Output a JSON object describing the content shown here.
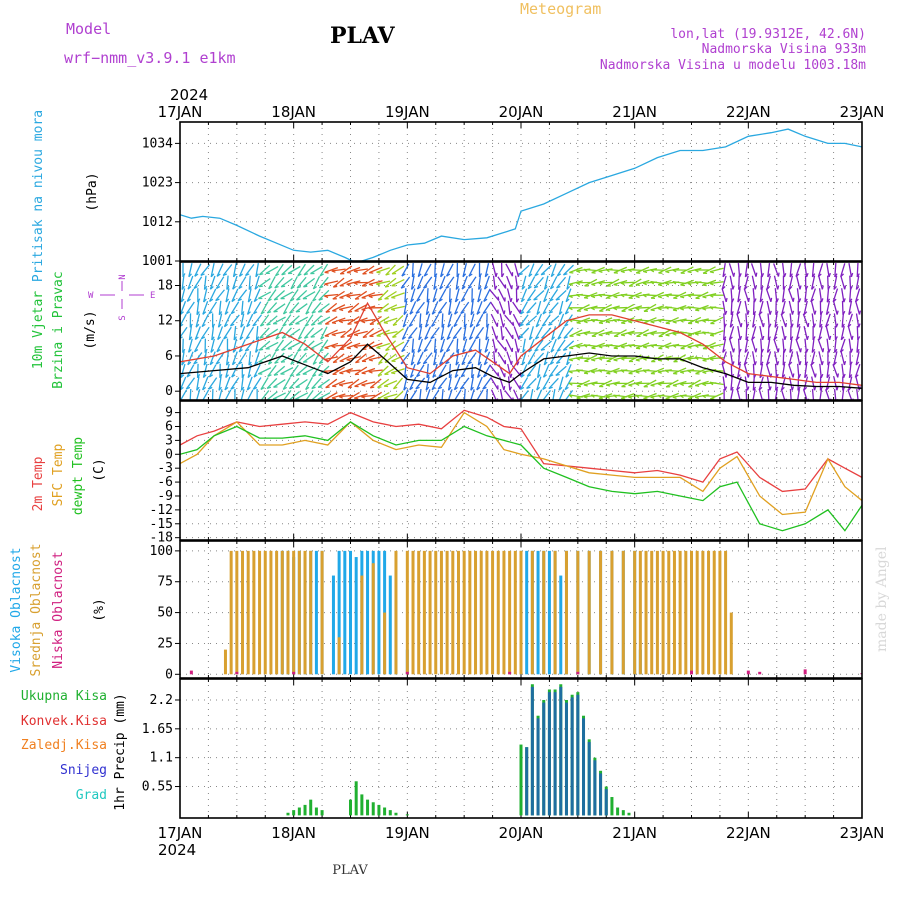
{
  "header": {
    "model_label": "Model",
    "model_name": "wrf−nmm_v3.9.1  e1km",
    "station": "PLAV",
    "meteogram": "Meteogram",
    "lonlat": "lon,lat (19.9312E, 42.6N)",
    "altitude": "Nadmorska Visina 933m",
    "model_altitude": "Nadmorska Visina u modelu 1003.18m",
    "year_top": "2024",
    "year_bottom": "2024",
    "footer_station": "PLAV",
    "credit": "made by Angel"
  },
  "colors": {
    "pressure": "#2aa8e0",
    "wind_label": "#22c33a",
    "axis_purple": "#b03cd0",
    "temp2m": "#e84040",
    "sfc": "#e0a020",
    "dewpt": "#20c020",
    "cloud_high": "#20a8e8",
    "cloud_mid": "#d8a030",
    "cloud_low": "#d02080",
    "precip_total": "#20b030",
    "precip_conv": "#e03030",
    "precip_frozen": "#f08020",
    "snow": "#3030d0",
    "grad": "#20c8c0"
  },
  "chart_data": [
    {
      "type": "line",
      "panel": "pressure",
      "ylabel_1": "Pritisak na nivou mora",
      "ylabel_2": "(hPa)",
      "x_ticks": [
        "17JAN",
        "18JAN",
        "19JAN",
        "20JAN",
        "21JAN",
        "22JAN",
        "23JAN"
      ],
      "y_ticks": [
        "1001",
        "1012",
        "1023",
        "1034"
      ],
      "ylim": [
        1001,
        1040
      ],
      "series": [
        {
          "color": "#2aa8e0",
          "x": [
            0,
            0.1,
            0.2,
            0.35,
            0.5,
            0.7,
            0.85,
            1.0,
            1.15,
            1.3,
            1.45,
            1.55,
            1.7,
            1.85,
            2.0,
            2.15,
            2.3,
            2.5,
            2.7,
            2.85,
            2.95,
            3.0,
            3.2,
            3.4,
            3.6,
            3.8,
            4.0,
            4.2,
            4.4,
            4.6,
            4.8,
            5.0,
            5.2,
            5.35,
            5.5,
            5.7,
            5.85,
            6.0
          ],
          "values": [
            1014,
            1013,
            1013.5,
            1013,
            1011,
            1008,
            1006,
            1004,
            1003.5,
            1004,
            1002,
            1000.5,
            1002,
            1004,
            1005.5,
            1006,
            1008,
            1007,
            1007.5,
            1009,
            1010,
            1015,
            1017,
            1020,
            1023,
            1025,
            1027,
            1030,
            1032,
            1032,
            1033,
            1036,
            1037,
            1038,
            1036,
            1034,
            1034,
            1033
          ]
        }
      ]
    },
    {
      "type": "line",
      "panel": "wind",
      "ylabel_1": "10m Vjetar",
      "ylabel_2": "Brzina i Pravac",
      "ylabel_3": "(m/s)",
      "y_ticks": [
        "0",
        "6",
        "12",
        "18"
      ],
      "ylim": [
        -1.5,
        22
      ],
      "legend": {
        "n": "N",
        "w": "W",
        "e": "E",
        "s": "S"
      },
      "series": [
        {
          "name": "speed",
          "color": "#000000",
          "x": [
            0,
            0.3,
            0.6,
            0.9,
            1.1,
            1.3,
            1.5,
            1.65,
            1.8,
            2.0,
            2.2,
            2.4,
            2.6,
            2.75,
            2.9,
            3.0,
            3.2,
            3.4,
            3.6,
            3.8,
            4.0,
            4.2,
            4.4,
            4.6,
            4.8,
            5.0,
            5.2,
            5.4,
            5.6,
            5.8,
            6.0
          ],
          "values": [
            3,
            3.5,
            4,
            6,
            4.5,
            3,
            5,
            8,
            5.5,
            2,
            1.5,
            3.5,
            4,
            2.5,
            1.5,
            3,
            5.5,
            6,
            6.5,
            6,
            6,
            5.5,
            5.5,
            4,
            3,
            1.5,
            1.5,
            1,
            0.8,
            0.8,
            0.5
          ]
        },
        {
          "name": "gust",
          "color": "#e04030",
          "x": [
            0,
            0.3,
            0.6,
            0.9,
            1.1,
            1.3,
            1.5,
            1.65,
            1.8,
            2.0,
            2.2,
            2.4,
            2.6,
            2.75,
            2.9,
            3.0,
            3.2,
            3.4,
            3.6,
            3.8,
            4.0,
            4.2,
            4.4,
            4.6,
            4.8,
            5.0,
            5.2,
            5.4,
            5.6,
            5.8,
            6.0
          ],
          "values": [
            5,
            6,
            8,
            10,
            8,
            5,
            9,
            15,
            10,
            4,
            3,
            6,
            7,
            5,
            3,
            6,
            9,
            12,
            13,
            13,
            12,
            11,
            10,
            8,
            5,
            3,
            2.5,
            2,
            1.5,
            1.5,
            1
          ]
        }
      ]
    },
    {
      "type": "line",
      "panel": "temperature",
      "ylabel_1": "2m Temp",
      "ylabel_2": "SFC Temp",
      "ylabel_3": "dewpt Temp",
      "ylabel_4": "(C)",
      "y_ticks": [
        "-18",
        "-15",
        "-12",
        "-9",
        "-6",
        "-3",
        "0",
        "3",
        "6",
        "9"
      ],
      "ylim": [
        -18.5,
        11.5
      ],
      "series": [
        {
          "name": "2m Temp",
          "color": "#e84040",
          "x": [
            0,
            0.15,
            0.3,
            0.5,
            0.7,
            0.9,
            1.1,
            1.3,
            1.5,
            1.7,
            1.9,
            2.1,
            2.3,
            2.5,
            2.7,
            2.85,
            3.0,
            3.2,
            3.4,
            3.6,
            3.8,
            4.0,
            4.2,
            4.4,
            4.6,
            4.75,
            4.9,
            5.1,
            5.3,
            5.5,
            5.7,
            5.85,
            6.0
          ],
          "values": [
            2,
            4,
            5,
            7,
            6,
            6.5,
            7,
            6.5,
            9,
            7,
            6,
            6.5,
            5.5,
            9.5,
            8,
            6,
            5.5,
            -2,
            -2.5,
            -3,
            -3.5,
            -4,
            -3.5,
            -4.5,
            -6,
            -1,
            0.5,
            -5,
            -8,
            -7.5,
            -1,
            -3,
            -5
          ]
        },
        {
          "name": "SFC Temp",
          "color": "#e0a020",
          "x": [
            0,
            0.15,
            0.3,
            0.5,
            0.7,
            0.9,
            1.1,
            1.3,
            1.5,
            1.7,
            1.9,
            2.1,
            2.3,
            2.5,
            2.7,
            2.85,
            3.0,
            3.2,
            3.4,
            3.6,
            3.8,
            4.0,
            4.2,
            4.4,
            4.6,
            4.75,
            4.9,
            5.1,
            5.3,
            5.5,
            5.7,
            5.85,
            6.0
          ],
          "values": [
            -2,
            0,
            4,
            7,
            2,
            2,
            3,
            2,
            7,
            3,
            1,
            2,
            1.5,
            9,
            6,
            1,
            0,
            -1,
            -2.5,
            -4,
            -4.5,
            -5,
            -5,
            -5,
            -8,
            -3,
            -0.5,
            -9,
            -13,
            -12.5,
            -1,
            -7,
            -10
          ]
        },
        {
          "name": "dewpt Temp",
          "color": "#20c020",
          "x": [
            0,
            0.15,
            0.3,
            0.5,
            0.7,
            0.9,
            1.1,
            1.3,
            1.5,
            1.7,
            1.9,
            2.1,
            2.3,
            2.5,
            2.7,
            2.85,
            3.0,
            3.2,
            3.4,
            3.6,
            3.8,
            4.0,
            4.2,
            4.4,
            4.6,
            4.75,
            4.9,
            5.1,
            5.3,
            5.5,
            5.7,
            5.85,
            6.0
          ],
          "values": [
            0,
            1,
            4,
            6,
            3.5,
            3.5,
            4,
            3,
            7,
            4,
            2,
            3,
            3,
            6,
            4,
            3,
            2,
            -3,
            -5,
            -7,
            -8,
            -8.5,
            -8,
            -9,
            -10,
            -7,
            -6,
            -15,
            -16.5,
            -15,
            -12,
            -16.5,
            -11
          ]
        }
      ]
    },
    {
      "type": "bar",
      "panel": "clouds",
      "ylabel_1": "Visoka Oblacnost",
      "ylabel_2": "Srednja Oblacnost",
      "ylabel_3": "Niska Oblacnost",
      "ylabel_4": "(%)",
      "y_ticks": [
        "0",
        "25",
        "50",
        "75",
        "100"
      ],
      "ylim": [
        -3,
        108
      ],
      "series": [
        {
          "name": "Visoka Oblacnost",
          "color": "#20a8e8",
          "x": [
            0.9,
            0.95,
            1.0,
            1.05,
            1.1,
            1.15,
            1.2,
            1.25,
            1.35,
            1.4,
            1.45,
            1.5,
            1.55,
            1.6,
            1.65,
            1.7,
            1.75,
            1.8,
            1.85,
            1.9,
            2.0,
            3.0,
            3.05,
            3.1,
            3.15,
            3.2,
            3.25,
            3.3,
            3.35,
            3.4,
            3.5,
            3.6,
            3.7,
            3.8,
            3.9,
            4.0,
            4.05
          ],
          "values": [
            100,
            100,
            95,
            100,
            95,
            100,
            100,
            100,
            80,
            100,
            100,
            100,
            95,
            100,
            100,
            100,
            100,
            100,
            80,
            60,
            20,
            100,
            100,
            100,
            100,
            100,
            100,
            100,
            80,
            100,
            100,
            100,
            100,
            100,
            100,
            100,
            20
          ]
        },
        {
          "name": "Srednja Oblacnost",
          "color": "#d8a030",
          "x": [
            0.4,
            0.45,
            0.5,
            0.55,
            0.6,
            0.65,
            0.7,
            0.75,
            0.8,
            0.85,
            0.9,
            0.95,
            1.0,
            1.05,
            1.1,
            1.15,
            1.25,
            1.4,
            1.6,
            1.7,
            1.8,
            1.9,
            2.0,
            2.05,
            2.1,
            2.15,
            2.2,
            2.25,
            2.3,
            2.35,
            2.4,
            2.45,
            2.5,
            2.55,
            2.6,
            2.65,
            2.7,
            2.75,
            2.8,
            2.85,
            2.9,
            2.95,
            3.0,
            3.1,
            3.2,
            3.3,
            3.4,
            3.5,
            3.6,
            3.7,
            3.8,
            3.9,
            4.0,
            4.05,
            4.1,
            4.15,
            4.2,
            4.25,
            4.3,
            4.35,
            4.4,
            4.45,
            4.5,
            4.55,
            4.6,
            4.65,
            4.7,
            4.75,
            4.8,
            4.85
          ],
          "values": [
            20,
            100,
            100,
            100,
            100,
            100,
            100,
            100,
            100,
            100,
            100,
            100,
            100,
            100,
            100,
            100,
            100,
            30,
            80,
            90,
            50,
            100,
            100,
            100,
            100,
            100,
            100,
            100,
            100,
            100,
            100,
            100,
            100,
            100,
            100,
            100,
            100,
            100,
            100,
            100,
            100,
            100,
            100,
            100,
            100,
            100,
            100,
            100,
            100,
            100,
            100,
            100,
            100,
            100,
            100,
            100,
            100,
            100,
            100,
            100,
            100,
            100,
            100,
            100,
            100,
            100,
            100,
            100,
            100,
            50
          ]
        },
        {
          "name": "Niska Oblacnost",
          "color": "#d02080",
          "x": [
            0.1,
            0.5,
            1.0,
            2.0,
            2.9,
            3.5,
            4.5,
            5.0,
            5.5,
            5.1,
            6.0
          ],
          "values": [
            3,
            2,
            2,
            2,
            2,
            2,
            3,
            3,
            4,
            2,
            1
          ]
        }
      ]
    },
    {
      "type": "bar",
      "panel": "precip",
      "ylabel": "1hr Precip (mm)",
      "y_ticks": [
        "0.55",
        "1.1",
        "1.65",
        "2.2"
      ],
      "ylim": [
        -0.05,
        2.6
      ],
      "legend": [
        "Ukupna Kisa",
        "Konvek.Kisa",
        "Zaledj.Kisa",
        "Snijeg",
        "Grad"
      ],
      "series": [
        {
          "name": "Ukupna Kisa",
          "color": "#20b030",
          "x": [
            0.95,
            1.0,
            1.05,
            1.1,
            1.15,
            1.2,
            1.25,
            1.5,
            1.55,
            1.6,
            1.65,
            1.7,
            1.75,
            1.8,
            1.85,
            1.9,
            2.0,
            3.0,
            3.05,
            3.1,
            3.15,
            3.2,
            3.25,
            3.3,
            3.35,
            3.4,
            3.45,
            3.5,
            3.55,
            3.6,
            3.65,
            3.7,
            3.75,
            3.8,
            3.85,
            3.9,
            3.95
          ],
          "values": [
            0.05,
            0.1,
            0.15,
            0.2,
            0.3,
            0.15,
            0.1,
            0.3,
            0.65,
            0.4,
            0.3,
            0.25,
            0.2,
            0.15,
            0.1,
            0.05,
            0.02,
            1.35,
            1.3,
            2.5,
            1.9,
            2.2,
            2.4,
            2.4,
            2.5,
            2.2,
            2.3,
            2.35,
            1.9,
            1.45,
            1.1,
            0.85,
            0.55,
            0.35,
            0.15,
            0.1,
            0.05
          ]
        },
        {
          "name": "Snijeg",
          "color": "#1e6ea0",
          "x": [
            3.05,
            3.1,
            3.15,
            3.2,
            3.25,
            3.3,
            3.35,
            3.4,
            3.45,
            3.5,
            3.55,
            3.6,
            3.65,
            3.7,
            3.75
          ],
          "values": [
            1.3,
            2.45,
            1.85,
            2.15,
            2.35,
            2.35,
            2.45,
            2.15,
            2.25,
            2.3,
            1.85,
            1.4,
            1.05,
            0.8,
            0.5
          ]
        }
      ]
    }
  ]
}
